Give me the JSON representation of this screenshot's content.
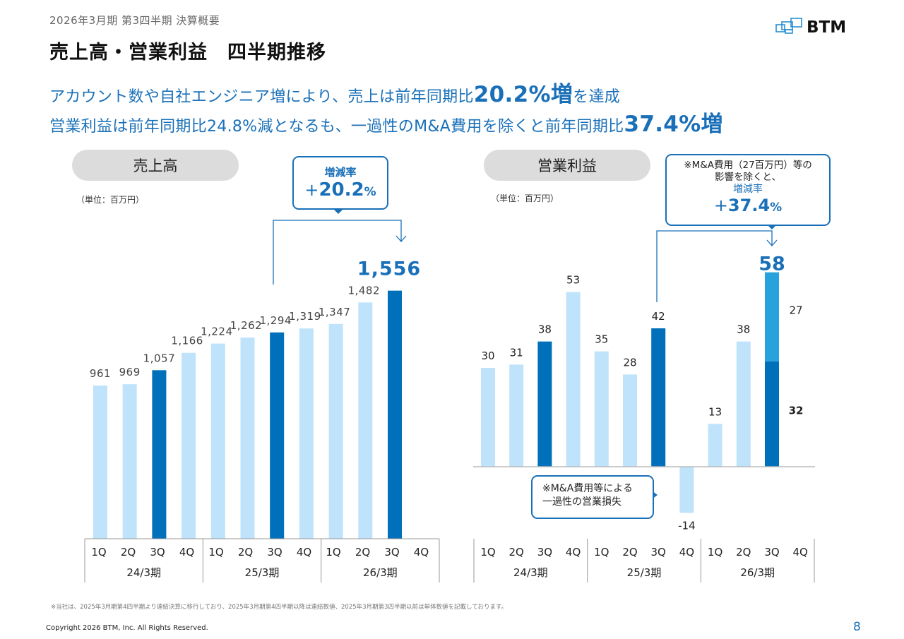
{
  "header": {
    "subtitle": "2026年3月期  第3四半期  決算概要",
    "title": "売上高・営業利益　四半期推移",
    "logo_text": "BTM",
    "headline1": {
      "pre": "アカウント数や自社エンジニア増により、売上は前年同期比",
      "big": "20.2%増",
      "post": "を達成"
    },
    "headline2": {
      "pre": "営業利益は前年同期比24.8%減となるも、一過性のM&A費用を除くと前年同期比",
      "big": "37.4%増",
      "post": ""
    }
  },
  "sales_panel": {
    "pill_label": "売上高",
    "unit": "（単位：百万円）",
    "callout_label": "増減率",
    "callout_sign": "+",
    "callout_value": "20.2",
    "callout_pct": "%",
    "highlight_value": "1,556"
  },
  "op_panel": {
    "pill_label": "営業利益",
    "unit": "（単位：百万円）",
    "callout_note1": "※M&A費用（27百万円）等の",
    "callout_note2": "影響を除くと、",
    "callout_label": "増減率",
    "callout_sign": "+",
    "callout_value": "37.4",
    "callout_pct": "%",
    "highlight_value": "58",
    "loss_note1": "※M&A費用等による",
    "loss_note2": "一過性の営業損失"
  },
  "colors": {
    "light_bar": "#bfe3fa",
    "dark_bar": "#0070bb",
    "mid_bar": "#28a2dd",
    "accent": "#1a70b8"
  },
  "chart_data": [
    {
      "type": "bar",
      "title": "売上高",
      "ylabel": "百万円",
      "quarters": [
        "1Q",
        "2Q",
        "3Q",
        "4Q",
        "1Q",
        "2Q",
        "3Q",
        "4Q",
        "1Q",
        "2Q",
        "3Q",
        "4Q"
      ],
      "periods": [
        "24/3期",
        "25/3期",
        "26/3期"
      ],
      "values": [
        961,
        969,
        1057,
        1166,
        1224,
        1262,
        1294,
        1319,
        1347,
        1482,
        1556,
        null
      ],
      "labels": [
        "961",
        "969",
        "1,057",
        "1,166",
        "1,224",
        "1,262",
        "1,294",
        "1,319",
        "1,347",
        "1,482",
        "1,556",
        ""
      ],
      "highlight": [
        false,
        false,
        true,
        false,
        false,
        false,
        true,
        false,
        false,
        false,
        true,
        false
      ],
      "ylim": [
        0,
        1700
      ],
      "grid": false,
      "annotation": "増減率 +20.2%"
    },
    {
      "type": "bar",
      "title": "営業利益",
      "ylabel": "百万円",
      "quarters": [
        "1Q",
        "2Q",
        "3Q",
        "4Q",
        "1Q",
        "2Q",
        "3Q",
        "4Q",
        "1Q",
        "2Q",
        "3Q",
        "4Q"
      ],
      "periods": [
        "24/3期",
        "25/3期",
        "26/3期"
      ],
      "values": [
        30,
        31,
        38,
        53,
        35,
        28,
        42,
        -14,
        13,
        38,
        58,
        null
      ],
      "labels": [
        "30",
        "31",
        "38",
        "53",
        "35",
        "28",
        "42",
        "-14",
        "13",
        "38",
        "58",
        ""
      ],
      "highlight": [
        false,
        false,
        true,
        false,
        false,
        false,
        true,
        false,
        false,
        false,
        true,
        false
      ],
      "stacked_last": {
        "index": 10,
        "segments": [
          {
            "name": "営業利益",
            "value": 32
          },
          {
            "name": "M&A費用",
            "value": 27
          }
        ]
      },
      "ylim": [
        -20,
        62
      ],
      "grid": false,
      "annotation": "※M&A費用（27百万円）等の影響を除くと、増減率 +37.4%"
    }
  ],
  "footer": {
    "footnote": "※当社は、2025年3月期第4四半期より連結決算に移行しており、2025年3月期第4四半期以降は連結数値、2025年3月期第3四半期以前は単体数値を記載しております。",
    "copyright": "Copyright 2026 BTM, Inc. All Rights Reserved.",
    "page": "8"
  }
}
